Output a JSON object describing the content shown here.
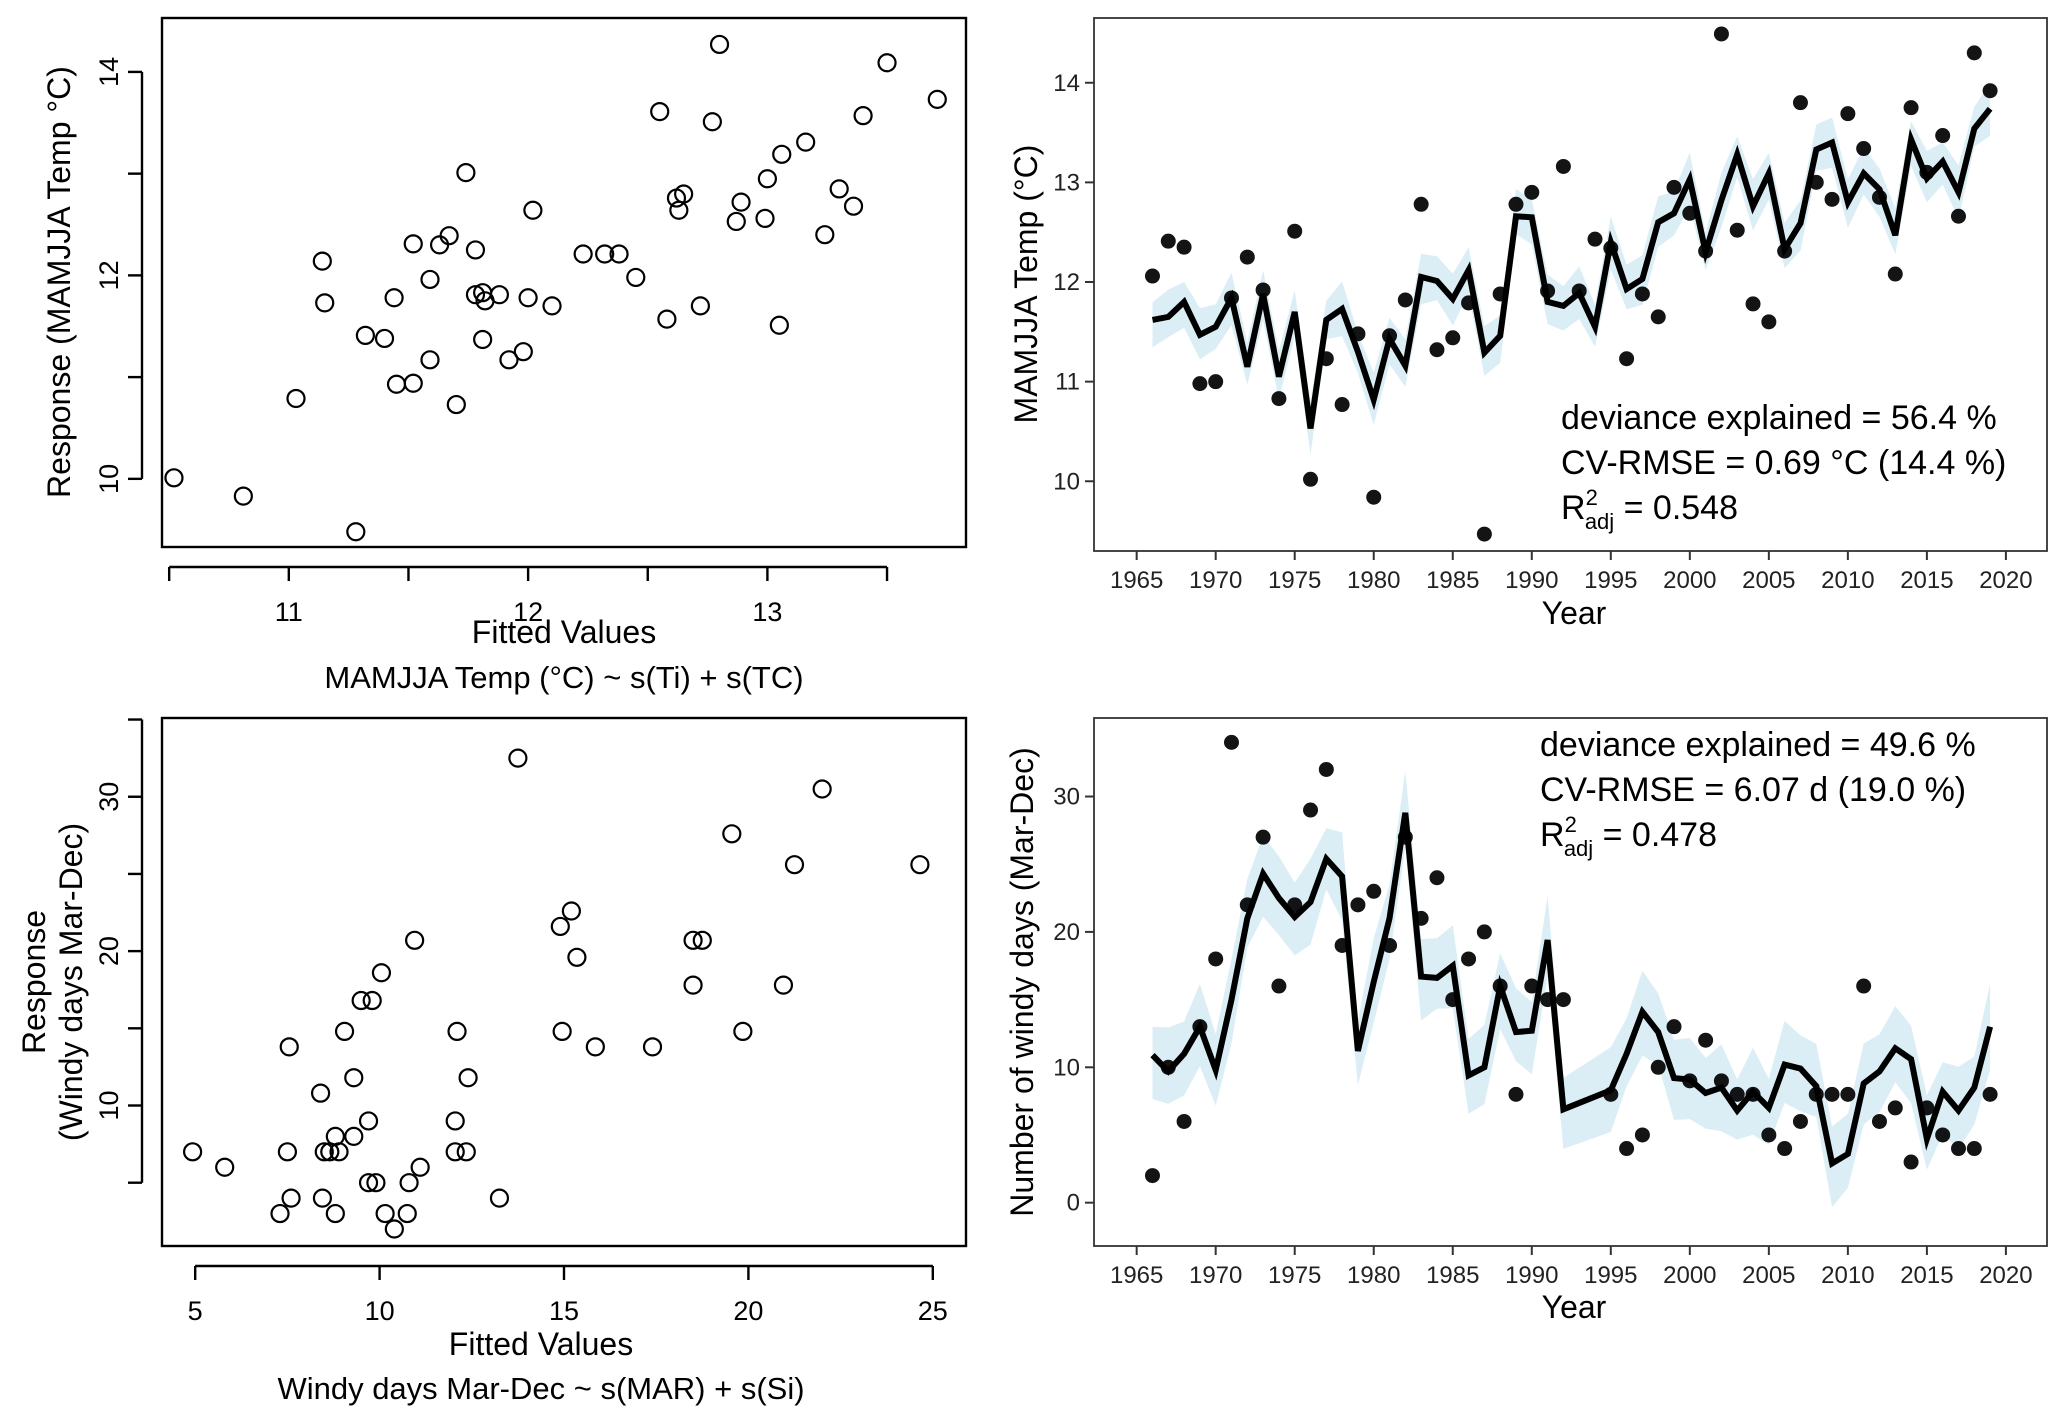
{
  "figure": {
    "panels": [
      "temp-scatter",
      "temp-timeseries",
      "windy-scatter",
      "windy-timeseries"
    ]
  },
  "colors": {
    "ci_band": "#dbeef6",
    "line": "#000000",
    "points": "#000000"
  },
  "chart_data": [
    {
      "id": "temp-scatter",
      "type": "scatter",
      "title": "",
      "xlabel": "Fitted Values",
      "subtitle": "MAMJJA Temp (°C) ~ s(Ti) + s(TC)",
      "ylabel": "Response (MAMJJA Temp °C)",
      "xlim": [
        10.47,
        13.83
      ],
      "ylim": [
        9.33,
        14.53
      ],
      "x_ticks": [
        10.5,
        11,
        11.5,
        12,
        12.5,
        13,
        13.5
      ],
      "x_tick_labels": [
        "",
        "11",
        "",
        "12",
        "",
        "13",
        ""
      ],
      "y_ticks": [
        10,
        11,
        12,
        13,
        14
      ],
      "y_tick_labels": [
        "10",
        "",
        "12",
        "",
        "14"
      ],
      "grid": false,
      "marker": "open-circle",
      "points": [
        [
          10.52,
          10.01
        ],
        [
          10.81,
          9.83
        ],
        [
          11.28,
          9.48
        ],
        [
          11.03,
          10.79
        ],
        [
          11.14,
          12.14
        ],
        [
          11.15,
          11.73
        ],
        [
          11.32,
          11.41
        ],
        [
          11.4,
          11.38
        ],
        [
          11.45,
          10.93
        ],
        [
          11.44,
          11.78
        ],
        [
          11.52,
          12.31
        ],
        [
          11.52,
          10.94
        ],
        [
          11.59,
          11.17
        ],
        [
          11.59,
          11.96
        ],
        [
          11.63,
          12.3
        ],
        [
          11.67,
          12.39
        ],
        [
          11.7,
          10.73
        ],
        [
          11.74,
          13.01
        ],
        [
          11.78,
          12.25
        ],
        [
          11.78,
          11.81
        ],
        [
          11.81,
          11.83
        ],
        [
          11.82,
          11.75
        ],
        [
          11.81,
          11.37
        ],
        [
          11.88,
          11.81
        ],
        [
          11.92,
          11.17
        ],
        [
          11.98,
          11.25
        ],
        [
          12.0,
          11.78
        ],
        [
          12.02,
          12.64
        ],
        [
          12.1,
          11.7
        ],
        [
          12.23,
          12.21
        ],
        [
          12.32,
          12.21
        ],
        [
          12.38,
          12.21
        ],
        [
          12.45,
          11.98
        ],
        [
          12.55,
          13.61
        ],
        [
          12.58,
          11.57
        ],
        [
          12.62,
          12.76
        ],
        [
          12.63,
          12.64
        ],
        [
          12.65,
          12.8
        ],
        [
          12.72,
          11.7
        ],
        [
          12.77,
          13.51
        ],
        [
          12.8,
          14.27
        ],
        [
          12.87,
          12.53
        ],
        [
          12.89,
          12.72
        ],
        [
          12.99,
          12.56
        ],
        [
          13.0,
          12.95
        ],
        [
          13.06,
          13.19
        ],
        [
          13.05,
          11.51
        ],
        [
          13.16,
          13.31
        ],
        [
          13.24,
          12.4
        ],
        [
          13.3,
          12.85
        ],
        [
          13.36,
          12.68
        ],
        [
          13.4,
          13.57
        ],
        [
          13.5,
          14.09
        ],
        [
          13.71,
          13.73
        ]
      ]
    },
    {
      "id": "temp-timeseries",
      "type": "line",
      "title": "",
      "xlabel": "Year",
      "ylabel": "MAMJJA Temp (°C)",
      "xlim": [
        1962.3,
        2022.6
      ],
      "ylim": [
        9.3,
        14.65
      ],
      "x_ticks": [
        1965,
        1970,
        1975,
        1980,
        1985,
        1990,
        1995,
        2000,
        2005,
        2010,
        2015,
        2020
      ],
      "x_tick_labels": [
        "1965",
        "1970",
        "1975",
        "1980",
        "1985",
        "1990",
        "1995",
        "2000",
        "2005",
        "2010",
        "2015",
        "2020"
      ],
      "y_ticks": [
        10,
        11,
        12,
        13,
        14
      ],
      "y_tick_labels": [
        "10",
        "11",
        "12",
        "13",
        "14"
      ],
      "grid": false,
      "annotations": {
        "line1": "deviance explained = 56.4 %",
        "line2": "CV-RMSE = 0.69 °C (14.4 %)",
        "r2_base": "R",
        "r2_sup": "2",
        "r2_sub": "adj",
        "r2_value": " = 0.548"
      },
      "ci_halfwidth": 0.22,
      "years": [
        1966,
        1967,
        1968,
        1969,
        1970,
        1971,
        1972,
        1973,
        1974,
        1975,
        1976,
        1977,
        1978,
        1979,
        1980,
        1981,
        1982,
        1983,
        1984,
        1985,
        1986,
        1987,
        1988,
        1989,
        1990,
        1991,
        1992,
        1993,
        1994,
        1995,
        1996,
        1997,
        1998,
        1999,
        2000,
        2001,
        2002,
        2003,
        2004,
        2005,
        2006,
        2007,
        2008,
        2009,
        2010,
        2011,
        2012,
        2013,
        2014,
        2015,
        2016,
        2017,
        2018,
        2019
      ],
      "series": [
        {
          "name": "observed",
          "values": [
            12.06,
            12.41,
            12.35,
            10.98,
            11.0,
            11.84,
            12.25,
            11.92,
            10.83,
            12.51,
            10.02,
            11.23,
            10.77,
            11.48,
            9.84,
            11.46,
            11.82,
            12.78,
            11.32,
            11.44,
            11.79,
            9.47,
            11.88,
            12.78,
            12.9,
            11.91,
            13.16,
            11.91,
            12.43,
            12.34,
            11.23,
            11.88,
            11.65,
            12.95,
            12.69,
            12.31,
            14.49,
            12.52,
            11.78,
            11.6,
            12.31,
            13.8,
            13.0,
            12.83,
            13.69,
            13.34,
            12.85,
            12.08,
            13.75,
            13.1,
            13.47,
            12.66,
            14.3,
            13.92
          ]
        },
        {
          "name": "fitted",
          "values": [
            11.62,
            11.65,
            11.8,
            11.47,
            11.55,
            11.84,
            11.15,
            11.88,
            11.05,
            11.7,
            10.53,
            11.62,
            11.73,
            11.3,
            10.82,
            11.43,
            11.16,
            12.05,
            12.01,
            11.83,
            12.12,
            11.29,
            11.46,
            12.66,
            12.65,
            11.8,
            11.76,
            11.89,
            11.55,
            12.4,
            11.93,
            12.03,
            12.6,
            12.69,
            13.03,
            12.3,
            12.82,
            13.28,
            12.76,
            13.09,
            12.33,
            12.59,
            13.33,
            13.4,
            12.8,
            13.09,
            12.93,
            12.47,
            13.43,
            13.04,
            13.21,
            12.9,
            13.54,
            13.74
          ]
        }
      ]
    },
    {
      "id": "windy-scatter",
      "type": "scatter",
      "title": "",
      "xlabel": "Fitted Values",
      "subtitle": "Windy days Mar-Dec ~ s(MAR) + s(Si)",
      "ylabel": "Response\n(Windy days Mar-Dec)",
      "ylabel_lines": [
        "Response",
        "(Windy days Mar-Dec)"
      ],
      "xlim": [
        4.1,
        25.9
      ],
      "ylim": [
        0.9,
        35.1
      ],
      "x_ticks": [
        5,
        10,
        15,
        20,
        25
      ],
      "x_tick_labels": [
        "5",
        "10",
        "15",
        "20",
        "25"
      ],
      "y_ticks": [
        5,
        10,
        15,
        20,
        25,
        30,
        35
      ],
      "y_tick_labels": [
        "",
        "10",
        "",
        "20",
        "",
        "30",
        ""
      ],
      "grid": false,
      "marker": "open-circle",
      "points": [
        [
          4.93,
          7
        ],
        [
          5.8,
          6
        ],
        [
          7.3,
          3
        ],
        [
          7.5,
          7
        ],
        [
          7.6,
          4
        ],
        [
          7.55,
          13.8
        ],
        [
          8.4,
          10.8
        ],
        [
          8.45,
          4
        ],
        [
          8.5,
          7
        ],
        [
          8.65,
          7
        ],
        [
          8.8,
          8
        ],
        [
          8.8,
          3
        ],
        [
          8.9,
          7
        ],
        [
          9.05,
          14.8
        ],
        [
          9.3,
          11.8
        ],
        [
          9.3,
          8
        ],
        [
          9.5,
          16.8
        ],
        [
          9.8,
          16.8
        ],
        [
          9.7,
          9
        ],
        [
          9.7,
          5
        ],
        [
          9.9,
          5
        ],
        [
          10.05,
          18.6
        ],
        [
          10.15,
          3
        ],
        [
          10.4,
          2
        ],
        [
          10.75,
          3
        ],
        [
          10.8,
          5
        ],
        [
          10.95,
          20.7
        ],
        [
          11.1,
          6
        ],
        [
          12.05,
          9
        ],
        [
          12.05,
          7
        ],
        [
          12.1,
          14.8
        ],
        [
          12.35,
          7
        ],
        [
          12.4,
          11.8
        ],
        [
          13.25,
          4
        ],
        [
          13.75,
          32.5
        ],
        [
          14.9,
          21.6
        ],
        [
          14.95,
          14.8
        ],
        [
          15.2,
          22.6
        ],
        [
          15.35,
          19.6
        ],
        [
          15.85,
          13.8
        ],
        [
          17.4,
          13.8
        ],
        [
          18.5,
          17.8
        ],
        [
          18.5,
          20.7
        ],
        [
          18.75,
          20.7
        ],
        [
          19.55,
          27.6
        ],
        [
          19.85,
          14.8
        ],
        [
          20.95,
          17.8
        ],
        [
          21.25,
          25.6
        ],
        [
          22.0,
          30.5
        ],
        [
          24.65,
          25.6
        ]
      ]
    },
    {
      "id": "windy-timeseries",
      "type": "line",
      "title": "",
      "xlabel": "Year",
      "ylabel": "Number of windy days (Mar-Dec)",
      "xlim": [
        1962.3,
        2022.6
      ],
      "ylim": [
        -3.2,
        35.8
      ],
      "x_ticks": [
        1965,
        1970,
        1975,
        1980,
        1985,
        1990,
        1995,
        2000,
        2005,
        2010,
        2015,
        2020
      ],
      "x_tick_labels": [
        "1965",
        "1970",
        "1975",
        "1980",
        "1985",
        "1990",
        "1995",
        "2000",
        "2005",
        "2010",
        "2015",
        "2020"
      ],
      "y_ticks": [
        0,
        10,
        20,
        30
      ],
      "y_tick_labels": [
        "0",
        "10",
        "20",
        "30"
      ],
      "grid": false,
      "annotations": {
        "line1": "deviance explained = 49.6 %",
        "line2": "CV-RMSE = 6.07 d (19.0 %)",
        "r2_base": "R",
        "r2_sup": "2",
        "r2_sub": "adj",
        "r2_value": " = 0.478"
      },
      "ci_halfwidth": 2.6,
      "years": [
        1966,
        1967,
        1968,
        1969,
        1970,
        1971,
        1972,
        1973,
        1974,
        1975,
        1976,
        1977,
        1978,
        1979,
        1980,
        1981,
        1982,
        1983,
        1984,
        1985,
        1986,
        1987,
        1988,
        1989,
        1990,
        1991,
        1992,
        1995,
        1996,
        1997,
        1998,
        1999,
        2000,
        2001,
        2002,
        2003,
        2004,
        2005,
        2006,
        2007,
        2008,
        2009,
        2010,
        2011,
        2012,
        2013,
        2014,
        2015,
        2016,
        2017,
        2018,
        2019
      ],
      "series": [
        {
          "name": "observed",
          "values": [
            2,
            10,
            6,
            13,
            18,
            34,
            22,
            27,
            16,
            22,
            29,
            32,
            19,
            22,
            23,
            19,
            27,
            21,
            24,
            15,
            18,
            20,
            16,
            8,
            16,
            15,
            15,
            8,
            4,
            5,
            10,
            13,
            9,
            12,
            9,
            8,
            8,
            5,
            4,
            6,
            8,
            8,
            8,
            16,
            6,
            7,
            3,
            7,
            5,
            4,
            4,
            8
          ]
        },
        {
          "name": "fitted",
          "values": [
            10.9,
            9.7,
            11.0,
            13.0,
            9.8,
            15.0,
            21.0,
            24.3,
            22.5,
            21.1,
            22.2,
            25.4,
            24.1,
            11.2,
            16.3,
            21.0,
            28.8,
            16.7,
            16.6,
            17.5,
            9.4,
            10.0,
            16.0,
            12.6,
            12.7,
            19.4,
            6.9,
            8.3,
            11.0,
            14.1,
            12.6,
            9.2,
            9.1,
            8.1,
            8.5,
            6.8,
            8.2,
            7.0,
            10.2,
            9.9,
            8.6,
            2.9,
            3.6,
            8.8,
            9.7,
            11.4,
            10.6,
            4.7,
            8.2,
            6.8,
            8.5,
            13.0
          ]
        }
      ]
    }
  ]
}
